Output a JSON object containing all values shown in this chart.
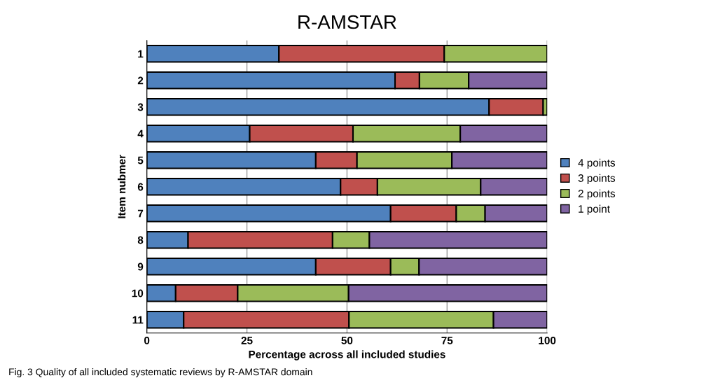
{
  "chart_data": {
    "type": "bar",
    "orientation": "horizontal",
    "stacked": true,
    "title": "R-AMSTAR",
    "xlabel": "Percentage across all included studies",
    "ylabel": "Item nubmer",
    "categories": [
      "1",
      "2",
      "3",
      "4",
      "5",
      "6",
      "7",
      "8",
      "9",
      "10",
      "11"
    ],
    "series": [
      {
        "name": "4 points",
        "color": "#4f81bd",
        "values": [
          33,
          62,
          85.5,
          25.7,
          42.2,
          48.4,
          60.9,
          10.3,
          42.2,
          7.2,
          9.2
        ]
      },
      {
        "name": "3 points",
        "color": "#c0504d",
        "values": [
          41.3,
          6.1,
          13.5,
          25.8,
          10.3,
          9.2,
          16.4,
          36.1,
          18.7,
          15.5,
          41.3
        ]
      },
      {
        "name": "2 points",
        "color": "#9bbb59",
        "values": [
          25.7,
          12.3,
          1,
          26.8,
          23.7,
          25.8,
          7.2,
          9.2,
          7.1,
          27.7,
          36.1
        ]
      },
      {
        "name": "1 point",
        "color": "#8064a2",
        "values": [
          null,
          19.6,
          null,
          21.7,
          23.8,
          16.6,
          15.5,
          44.4,
          32,
          49.6,
          13.4
        ]
      }
    ],
    "xlim": [
      0,
      100
    ],
    "xticks": [
      0,
      25,
      50,
      75,
      100
    ],
    "grid": "x",
    "legend": "right",
    "annotations": [
      "Fig. 3 Quality of all included systematic reviews by R-AMSTAR domain"
    ]
  }
}
